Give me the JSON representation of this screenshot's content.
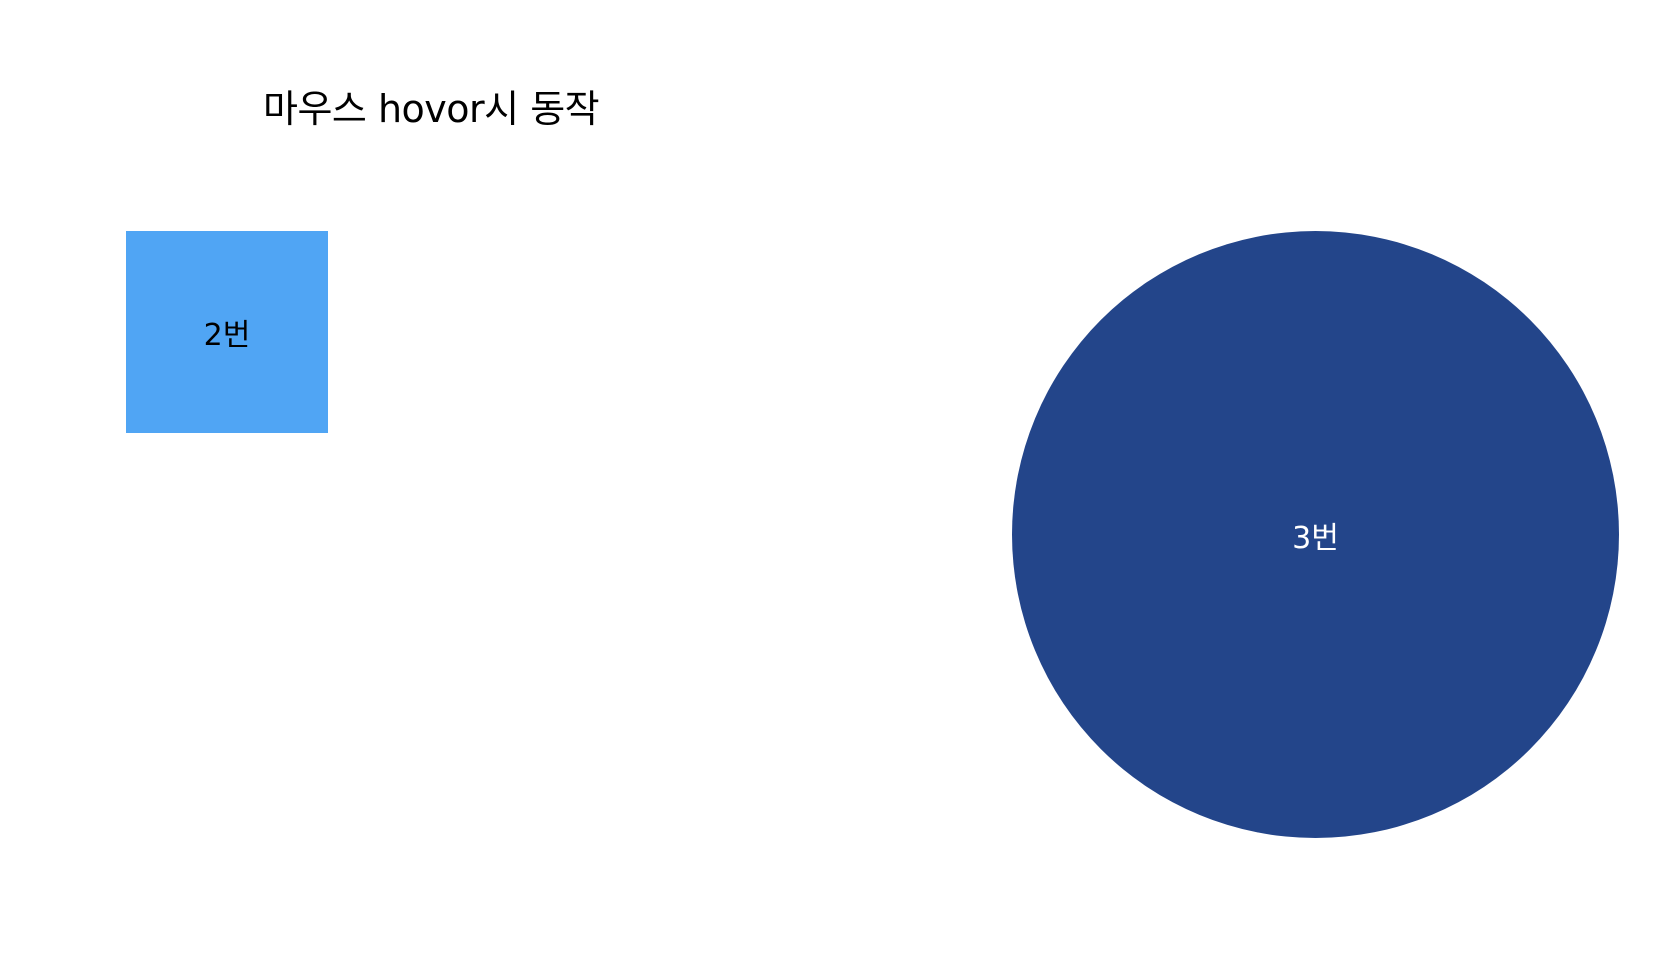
{
  "page": {
    "title": "마우스 hovor시 동작"
  },
  "boxes": [
    {
      "label": "2번",
      "color": "#50A5F4",
      "text_color": "#000000"
    },
    {
      "label": "3번",
      "color": "#23458A",
      "text_color": "#FFFFFF"
    }
  ]
}
